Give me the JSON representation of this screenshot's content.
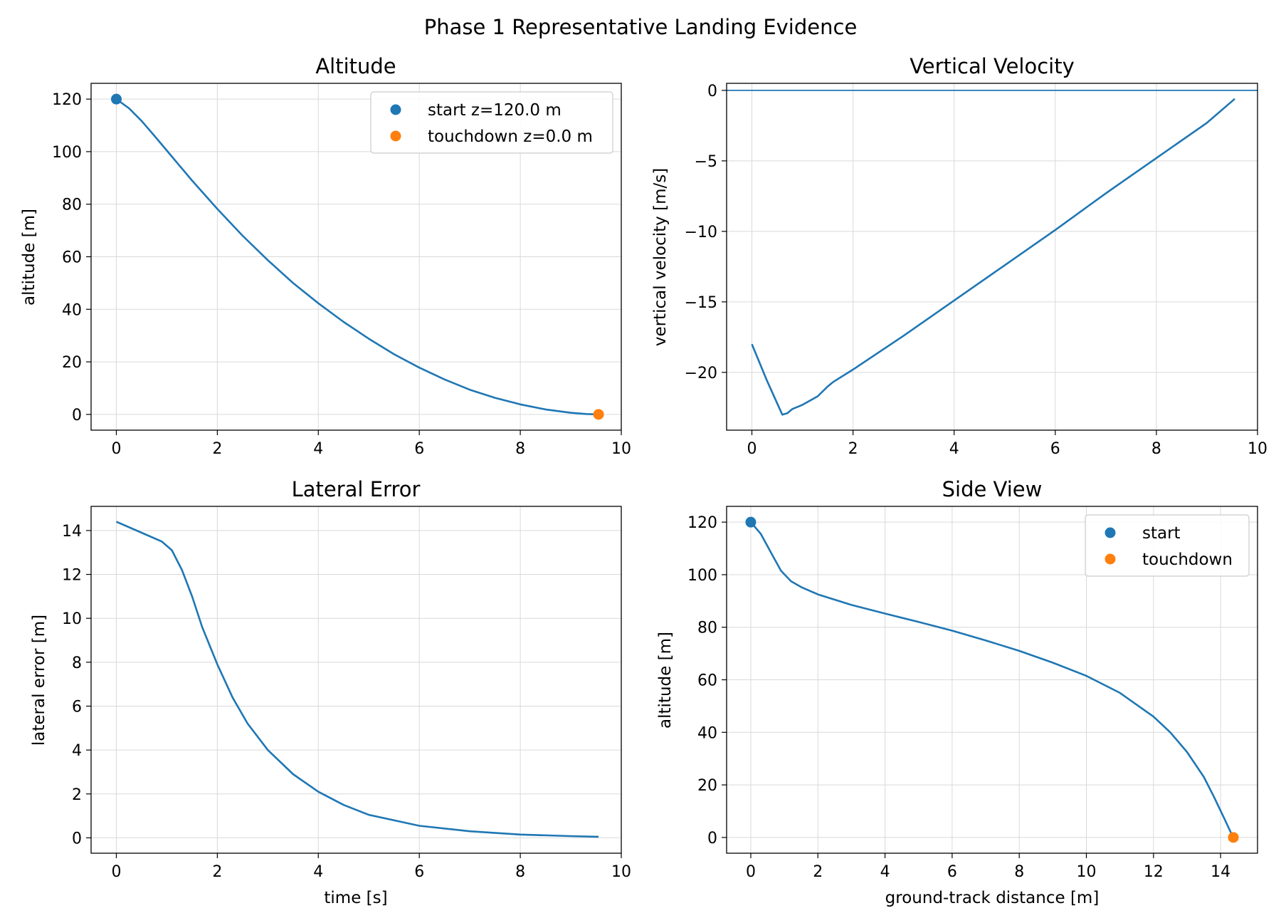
{
  "figure": {
    "title": "Phase 1 Representative Landing Evidence"
  },
  "colors": {
    "series": "#1f77b4",
    "start": "#1f77b4",
    "touchdown": "#ff7f0e"
  },
  "chart_data": [
    {
      "id": "altitude",
      "type": "line",
      "title": "Altitude",
      "xlabel": "",
      "ylabel": "altitude [m]",
      "xlim": [
        -0.5,
        10
      ],
      "ylim": [
        -6,
        126
      ],
      "xticks": [
        0,
        2,
        4,
        6,
        8,
        10
      ],
      "yticks": [
        0,
        20,
        40,
        60,
        80,
        100,
        120
      ],
      "grid": true,
      "legend": "upper-right",
      "series": [
        {
          "x": [
            0,
            0.25,
            0.5,
            0.75,
            1,
            1.5,
            2,
            2.5,
            3,
            3.5,
            4,
            4.5,
            5,
            5.5,
            6,
            6.5,
            7,
            7.5,
            8,
            8.5,
            9,
            9.3,
            9.55
          ],
          "y": [
            120,
            116.5,
            111.7,
            106.1,
            100.4,
            89,
            78.2,
            68,
            58.7,
            50,
            42.3,
            35.2,
            28.8,
            22.9,
            17.8,
            13.3,
            9.4,
            6.3,
            3.8,
            1.9,
            0.6,
            0.15,
            0
          ]
        }
      ],
      "points": [
        {
          "label": "start z=120.0 m",
          "x": 0,
          "y": 120,
          "role": "start"
        },
        {
          "label": "touchdown z=0.0 m",
          "x": 9.55,
          "y": 0,
          "role": "touchdown"
        }
      ]
    },
    {
      "id": "vertical-velocity",
      "type": "line",
      "title": "Vertical Velocity",
      "xlabel": "",
      "ylabel": "vertical velocity [m/s]",
      "xlim": [
        -0.5,
        10
      ],
      "ylim": [
        -24.1,
        0.5
      ],
      "xticks": [
        0,
        2,
        4,
        6,
        8,
        10
      ],
      "yticks": [
        0,
        -5,
        -10,
        -15,
        -20
      ],
      "grid": true,
      "hline": 0,
      "series": [
        {
          "x": [
            0,
            0.3,
            0.6,
            0.7,
            0.8,
            1,
            1.3,
            1.5,
            1.6,
            2,
            3,
            4,
            5,
            6,
            7,
            8,
            9,
            9.55
          ],
          "y": [
            -18,
            -20.6,
            -23.0,
            -22.9,
            -22.6,
            -22.3,
            -21.7,
            -21.0,
            -20.7,
            -19.8,
            -17.4,
            -14.9,
            -12.4,
            -9.9,
            -7.3,
            -4.8,
            -2.3,
            -0.6
          ]
        }
      ]
    },
    {
      "id": "lateral-error",
      "type": "line",
      "title": "Lateral Error",
      "xlabel": "time [s]",
      "ylabel": "lateral error [m]",
      "xlim": [
        -0.5,
        10
      ],
      "ylim": [
        -0.7,
        15.1
      ],
      "xticks": [
        0,
        2,
        4,
        6,
        8,
        10
      ],
      "yticks": [
        0,
        2,
        4,
        6,
        8,
        10,
        12,
        14
      ],
      "grid": true,
      "series": [
        {
          "x": [
            0,
            0.5,
            0.9,
            1.1,
            1.3,
            1.5,
            1.7,
            2,
            2.3,
            2.6,
            3,
            3.5,
            4,
            4.5,
            5,
            6,
            7,
            8,
            9,
            9.55
          ],
          "y": [
            14.4,
            13.9,
            13.5,
            13.1,
            12.2,
            11.0,
            9.6,
            7.9,
            6.4,
            5.2,
            4.0,
            2.9,
            2.1,
            1.5,
            1.05,
            0.55,
            0.3,
            0.15,
            0.08,
            0.05
          ]
        }
      ]
    },
    {
      "id": "side-view",
      "type": "line",
      "title": "Side View",
      "xlabel": "ground-track distance [m]",
      "ylabel": "altitude [m]",
      "xlim": [
        -0.72,
        15.1
      ],
      "ylim": [
        -6,
        126
      ],
      "xticks": [
        0,
        2,
        4,
        6,
        8,
        10,
        12,
        14
      ],
      "yticks": [
        0,
        20,
        40,
        60,
        80,
        100,
        120
      ],
      "grid": true,
      "legend": "upper-right",
      "series": [
        {
          "x": [
            0,
            0.3,
            0.6,
            0.9,
            1.2,
            1.5,
            2,
            3,
            4,
            5,
            6,
            7,
            8,
            9,
            10,
            11,
            12,
            12.5,
            13,
            13.5,
            13.8,
            14.1,
            14.3,
            14.38
          ],
          "y": [
            120,
            115.5,
            108.5,
            101.5,
            97.5,
            95.3,
            92.5,
            88.5,
            85.2,
            82,
            78.7,
            75,
            71,
            66.5,
            61.5,
            55,
            46,
            40,
            32.5,
            23,
            15.5,
            7.5,
            2,
            0
          ]
        }
      ],
      "points": [
        {
          "label": "start",
          "x": 0,
          "y": 120,
          "role": "start"
        },
        {
          "label": "touchdown",
          "x": 14.38,
          "y": 0,
          "role": "touchdown"
        }
      ]
    }
  ]
}
